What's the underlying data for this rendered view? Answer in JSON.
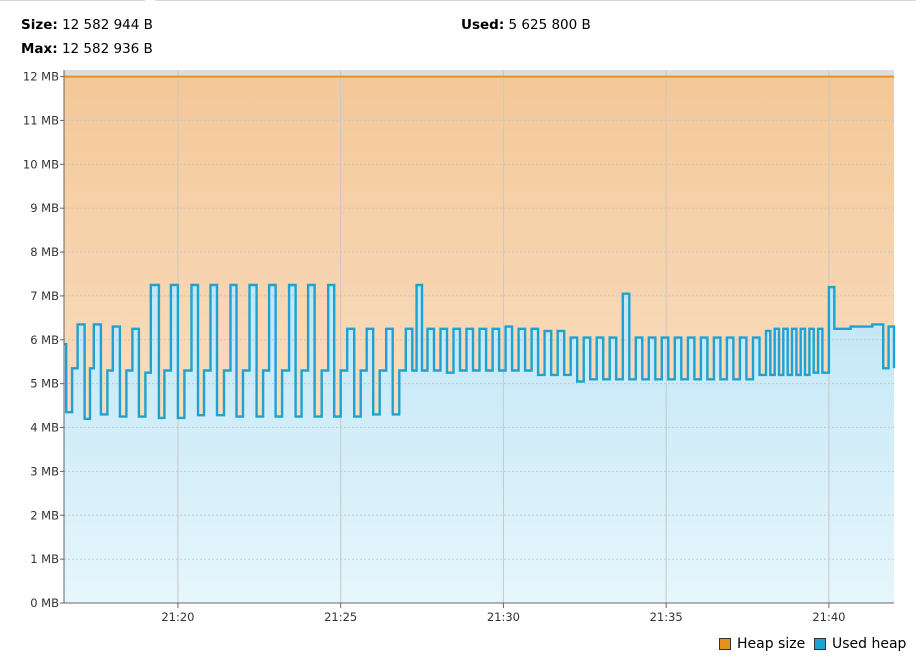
{
  "stats": {
    "size_label": "Size:",
    "size_value": "12 582 944 B",
    "max_label": "Max:",
    "max_value": "12 582 936 B",
    "used_label": "Used:",
    "used_value": "5 625 800 B"
  },
  "colors": {
    "heap_line": "#e8901c",
    "heap_fill_top": "#f4c898",
    "heap_fill_bottom": "#fbe8d4",
    "used_line": "#1fa2d2",
    "used_fill_top": "#c0e6f6",
    "used_fill_bottom": "#e6f6fc",
    "grid": "#c8c8c8",
    "plot_top_band": "#dcdcdc"
  },
  "chart_data": {
    "type": "area",
    "xlabel": "",
    "ylabel": "",
    "xlim": [
      "21:16:30",
      "21:42:00"
    ],
    "ylim": [
      0,
      12.15
    ],
    "y_unit": "MB",
    "grid": true,
    "legend_position": "bottom-right",
    "y_ticks": [
      {
        "value": 0,
        "label": "0 MB"
      },
      {
        "value": 1,
        "label": "1 MB"
      },
      {
        "value": 2,
        "label": "2 MB"
      },
      {
        "value": 3,
        "label": "3 MB"
      },
      {
        "value": 4,
        "label": "4 MB"
      },
      {
        "value": 5,
        "label": "5 MB"
      },
      {
        "value": 6,
        "label": "6 MB"
      },
      {
        "value": 7,
        "label": "7 MB"
      },
      {
        "value": 8,
        "label": "8 MB"
      },
      {
        "value": 9,
        "label": "9 MB"
      },
      {
        "value": 10,
        "label": "10 MB"
      },
      {
        "value": 11,
        "label": "11 MB"
      },
      {
        "value": 12,
        "label": "12 MB"
      }
    ],
    "x_ticks": [
      {
        "value": "21:20:00",
        "label": "21:20"
      },
      {
        "value": "21:25:00",
        "label": "21:25"
      },
      {
        "value": "21:30:00",
        "label": "21:30"
      },
      {
        "value": "21:35:00",
        "label": "21:35"
      },
      {
        "value": "21:40:00",
        "label": "21:40"
      }
    ],
    "series": [
      {
        "name": "Heap size",
        "color": "#e8901c",
        "points": [
          [
            "21:16:30",
            12.0
          ],
          [
            "21:42:00",
            12.0
          ]
        ]
      },
      {
        "name": "Used heap",
        "color": "#1fa2d2",
        "points": [
          [
            "21:16:30",
            5.9
          ],
          [
            "21:16:34",
            4.35
          ],
          [
            "21:16:45",
            5.35
          ],
          [
            "21:16:55",
            6.35
          ],
          [
            "21:17:08",
            4.2
          ],
          [
            "21:17:18",
            5.35
          ],
          [
            "21:17:25",
            6.35
          ],
          [
            "21:17:38",
            4.3
          ],
          [
            "21:17:50",
            5.3
          ],
          [
            "21:18:00",
            6.3
          ],
          [
            "21:18:13",
            4.25
          ],
          [
            "21:18:25",
            5.3
          ],
          [
            "21:18:36",
            6.25
          ],
          [
            "21:18:48",
            4.25
          ],
          [
            "21:19:00",
            5.25
          ],
          [
            "21:19:10",
            7.25
          ],
          [
            "21:19:25",
            4.22
          ],
          [
            "21:19:35",
            5.3
          ],
          [
            "21:19:47",
            7.25
          ],
          [
            "21:20:00",
            4.22
          ],
          [
            "21:20:12",
            5.3
          ],
          [
            "21:20:25",
            7.25
          ],
          [
            "21:20:37",
            4.28
          ],
          [
            "21:20:48",
            5.3
          ],
          [
            "21:21:00",
            7.25
          ],
          [
            "21:21:12",
            4.28
          ],
          [
            "21:21:25",
            5.3
          ],
          [
            "21:21:37",
            7.25
          ],
          [
            "21:21:48",
            4.25
          ],
          [
            "21:22:00",
            5.3
          ],
          [
            "21:22:12",
            7.25
          ],
          [
            "21:22:25",
            4.25
          ],
          [
            "21:22:37",
            5.3
          ],
          [
            "21:22:48",
            7.25
          ],
          [
            "21:23:00",
            4.25
          ],
          [
            "21:23:12",
            5.3
          ],
          [
            "21:23:25",
            7.25
          ],
          [
            "21:23:37",
            4.25
          ],
          [
            "21:23:48",
            5.3
          ],
          [
            "21:24:00",
            7.25
          ],
          [
            "21:24:12",
            4.25
          ],
          [
            "21:24:25",
            5.3
          ],
          [
            "21:24:37",
            7.25
          ],
          [
            "21:24:48",
            4.25
          ],
          [
            "21:25:00",
            5.3
          ],
          [
            "21:25:12",
            6.25
          ],
          [
            "21:25:25",
            4.25
          ],
          [
            "21:25:37",
            5.3
          ],
          [
            "21:25:48",
            6.25
          ],
          [
            "21:26:00",
            4.3
          ],
          [
            "21:26:12",
            5.3
          ],
          [
            "21:26:24",
            6.25
          ],
          [
            "21:26:36",
            4.3
          ],
          [
            "21:26:48",
            5.3
          ],
          [
            "21:27:00",
            6.25
          ],
          [
            "21:27:12",
            5.3
          ],
          [
            "21:27:20",
            7.25
          ],
          [
            "21:27:30",
            5.3
          ],
          [
            "21:27:40",
            6.25
          ],
          [
            "21:27:52",
            5.3
          ],
          [
            "21:28:04",
            6.25
          ],
          [
            "21:28:16",
            5.25
          ],
          [
            "21:28:28",
            6.25
          ],
          [
            "21:28:40",
            5.3
          ],
          [
            "21:28:52",
            6.25
          ],
          [
            "21:29:04",
            5.3
          ],
          [
            "21:29:16",
            6.25
          ],
          [
            "21:29:28",
            5.3
          ],
          [
            "21:29:40",
            6.25
          ],
          [
            "21:29:52",
            5.3
          ],
          [
            "21:30:04",
            6.3
          ],
          [
            "21:30:16",
            5.3
          ],
          [
            "21:30:28",
            6.25
          ],
          [
            "21:30:40",
            5.3
          ],
          [
            "21:30:52",
            6.25
          ],
          [
            "21:31:04",
            5.2
          ],
          [
            "21:31:16",
            6.2
          ],
          [
            "21:31:28",
            5.2
          ],
          [
            "21:31:40",
            6.2
          ],
          [
            "21:31:52",
            5.2
          ],
          [
            "21:32:04",
            6.05
          ],
          [
            "21:32:16",
            5.05
          ],
          [
            "21:32:28",
            6.05
          ],
          [
            "21:32:40",
            5.1
          ],
          [
            "21:32:52",
            6.05
          ],
          [
            "21:33:04",
            5.1
          ],
          [
            "21:33:16",
            6.05
          ],
          [
            "21:33:28",
            5.1
          ],
          [
            "21:33:40",
            7.05
          ],
          [
            "21:33:52",
            5.1
          ],
          [
            "21:34:04",
            6.05
          ],
          [
            "21:34:16",
            5.1
          ],
          [
            "21:34:28",
            6.05
          ],
          [
            "21:34:40",
            5.1
          ],
          [
            "21:34:52",
            6.05
          ],
          [
            "21:35:04",
            5.1
          ],
          [
            "21:35:16",
            6.05
          ],
          [
            "21:35:28",
            5.1
          ],
          [
            "21:35:40",
            6.05
          ],
          [
            "21:35:52",
            5.1
          ],
          [
            "21:36:04",
            6.05
          ],
          [
            "21:36:16",
            5.1
          ],
          [
            "21:36:28",
            6.05
          ],
          [
            "21:36:40",
            5.1
          ],
          [
            "21:36:52",
            6.05
          ],
          [
            "21:37:04",
            5.1
          ],
          [
            "21:37:16",
            6.05
          ],
          [
            "21:37:28",
            5.1
          ],
          [
            "21:37:40",
            6.05
          ],
          [
            "21:37:52",
            5.2
          ],
          [
            "21:38:04",
            6.2
          ],
          [
            "21:38:12",
            5.2
          ],
          [
            "21:38:20",
            6.25
          ],
          [
            "21:38:28",
            5.2
          ],
          [
            "21:38:36",
            6.25
          ],
          [
            "21:38:44",
            5.2
          ],
          [
            "21:38:52",
            6.25
          ],
          [
            "21:39:00",
            5.2
          ],
          [
            "21:39:08",
            6.25
          ],
          [
            "21:39:16",
            5.2
          ],
          [
            "21:39:24",
            6.25
          ],
          [
            "21:39:32",
            5.25
          ],
          [
            "21:39:40",
            6.25
          ],
          [
            "21:39:48",
            5.25
          ],
          [
            "21:40:00",
            7.2
          ],
          [
            "21:40:10",
            6.25
          ],
          [
            "21:40:40",
            6.3
          ],
          [
            "21:41:20",
            6.35
          ],
          [
            "21:41:40",
            5.35
          ],
          [
            "21:41:50",
            6.3
          ],
          [
            "21:42:00",
            5.35
          ]
        ]
      }
    ]
  },
  "legend": {
    "heap_size": "Heap size",
    "used_heap": "Used heap"
  }
}
